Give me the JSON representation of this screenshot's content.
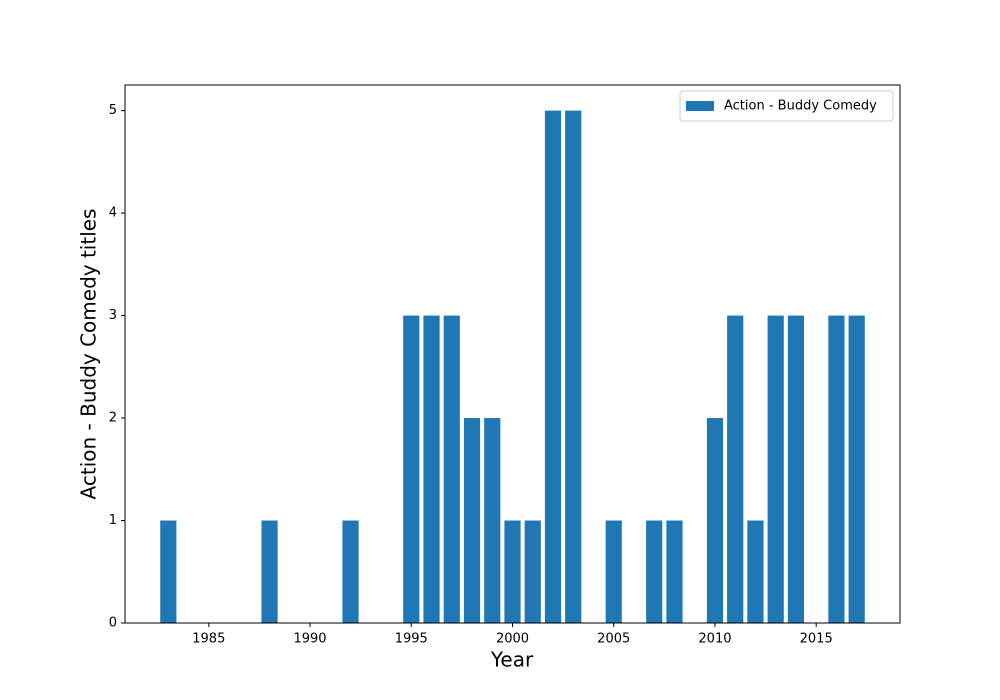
{
  "chart_data": {
    "type": "bar",
    "x": [
      1983,
      1988,
      1992,
      1995,
      1996,
      1997,
      1998,
      1999,
      2000,
      2001,
      2002,
      2003,
      2005,
      2007,
      2008,
      2010,
      2011,
      2012,
      2013,
      2014,
      2016,
      2017
    ],
    "series": [
      {
        "name": "Action - Buddy Comedy",
        "color": "#1f77b4",
        "values": [
          1,
          1,
          1,
          3,
          3,
          3,
          2,
          2,
          1,
          1,
          5,
          5,
          1,
          1,
          1,
          2,
          3,
          1,
          3,
          3,
          3,
          3
        ]
      }
    ],
    "xlabel": "Year",
    "ylabel": "Action - Buddy Comedy titles",
    "xlim": [
      1980.86,
      2019.14
    ],
    "xticks": [
      1985,
      1990,
      1995,
      2000,
      2005,
      2010,
      2015
    ],
    "ylim": [
      0,
      5.25
    ],
    "yticks": [
      0,
      1,
      2,
      3,
      4,
      5
    ],
    "grid": false,
    "legend": "upper right"
  }
}
